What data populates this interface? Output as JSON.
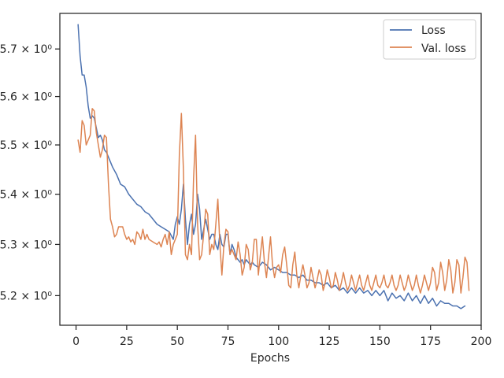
{
  "chart_data": {
    "type": "line",
    "title": "",
    "xlabel": "Epochs",
    "ylabel": "",
    "xlim": [
      -8,
      200
    ],
    "ylim": [
      5.143,
      5.776
    ],
    "yscale": "log",
    "grid": false,
    "legend_position": "top-right",
    "x_ticks": [
      0,
      25,
      50,
      75,
      100,
      125,
      150,
      175,
      200
    ],
    "x_tick_labels": [
      "0",
      "25",
      "50",
      "75",
      "100",
      "125",
      "150",
      "175",
      "200"
    ],
    "y_ticks": [
      5.2,
      5.3,
      5.4,
      5.5,
      5.6,
      5.7
    ],
    "y_tick_labels": [
      "5.2 × 10⁰",
      "5.3 × 10⁰",
      "5.4 × 10⁰",
      "5.5 × 10⁰",
      "5.6 × 10⁰",
      "5.7 × 10⁰"
    ],
    "series": [
      {
        "name": "Loss",
        "color": "#4c72b0",
        "points": [
          [
            1,
            5.752
          ],
          [
            2,
            5.685
          ],
          [
            3,
            5.645
          ],
          [
            4,
            5.645
          ],
          [
            5,
            5.62
          ],
          [
            6,
            5.58
          ],
          [
            7,
            5.555
          ],
          [
            8,
            5.56
          ],
          [
            9,
            5.555
          ],
          [
            10,
            5.535
          ],
          [
            11,
            5.515
          ],
          [
            12,
            5.52
          ],
          [
            13,
            5.51
          ],
          [
            14,
            5.49
          ],
          [
            15,
            5.485
          ],
          [
            16,
            5.475
          ],
          [
            18,
            5.455
          ],
          [
            20,
            5.44
          ],
          [
            22,
            5.42
          ],
          [
            24,
            5.415
          ],
          [
            26,
            5.4
          ],
          [
            28,
            5.39
          ],
          [
            30,
            5.38
          ],
          [
            32,
            5.375
          ],
          [
            34,
            5.365
          ],
          [
            36,
            5.36
          ],
          [
            38,
            5.35
          ],
          [
            40,
            5.34
          ],
          [
            42,
            5.335
          ],
          [
            44,
            5.33
          ],
          [
            46,
            5.325
          ],
          [
            48,
            5.31
          ],
          [
            49,
            5.34
          ],
          [
            50,
            5.355
          ],
          [
            51,
            5.34
          ],
          [
            52,
            5.37
          ],
          [
            53,
            5.42
          ],
          [
            54,
            5.35
          ],
          [
            55,
            5.3
          ],
          [
            56,
            5.34
          ],
          [
            57,
            5.36
          ],
          [
            58,
            5.32
          ],
          [
            59,
            5.34
          ],
          [
            60,
            5.4
          ],
          [
            61,
            5.37
          ],
          [
            62,
            5.31
          ],
          [
            63,
            5.33
          ],
          [
            64,
            5.35
          ],
          [
            65,
            5.33
          ],
          [
            66,
            5.31
          ],
          [
            67,
            5.32
          ],
          [
            68,
            5.32
          ],
          [
            69,
            5.3
          ],
          [
            70,
            5.29
          ],
          [
            71,
            5.32
          ],
          [
            72,
            5.3
          ],
          [
            73,
            5.295
          ],
          [
            74,
            5.32
          ],
          [
            75,
            5.32
          ],
          [
            76,
            5.28
          ],
          [
            77,
            5.3
          ],
          [
            78,
            5.29
          ],
          [
            79,
            5.275
          ],
          [
            80,
            5.27
          ],
          [
            81,
            5.265
          ],
          [
            82,
            5.27
          ],
          [
            83,
            5.26
          ],
          [
            84,
            5.27
          ],
          [
            85,
            5.265
          ],
          [
            86,
            5.26
          ],
          [
            87,
            5.265
          ],
          [
            88,
            5.26
          ],
          [
            90,
            5.255
          ],
          [
            92,
            5.265
          ],
          [
            94,
            5.26
          ],
          [
            96,
            5.25
          ],
          [
            98,
            5.255
          ],
          [
            100,
            5.25
          ],
          [
            102,
            5.245
          ],
          [
            104,
            5.245
          ],
          [
            106,
            5.24
          ],
          [
            108,
            5.24
          ],
          [
            110,
            5.235
          ],
          [
            112,
            5.24
          ],
          [
            114,
            5.23
          ],
          [
            116,
            5.23
          ],
          [
            118,
            5.225
          ],
          [
            120,
            5.225
          ],
          [
            122,
            5.22
          ],
          [
            124,
            5.225
          ],
          [
            126,
            5.215
          ],
          [
            128,
            5.22
          ],
          [
            130,
            5.21
          ],
          [
            132,
            5.215
          ],
          [
            134,
            5.205
          ],
          [
            136,
            5.215
          ],
          [
            138,
            5.205
          ],
          [
            140,
            5.215
          ],
          [
            142,
            5.205
          ],
          [
            144,
            5.21
          ],
          [
            146,
            5.2
          ],
          [
            148,
            5.21
          ],
          [
            150,
            5.2
          ],
          [
            152,
            5.21
          ],
          [
            154,
            5.19
          ],
          [
            156,
            5.205
          ],
          [
            158,
            5.195
          ],
          [
            160,
            5.2
          ],
          [
            162,
            5.19
          ],
          [
            164,
            5.205
          ],
          [
            166,
            5.19
          ],
          [
            168,
            5.2
          ],
          [
            170,
            5.185
          ],
          [
            172,
            5.2
          ],
          [
            174,
            5.185
          ],
          [
            176,
            5.195
          ],
          [
            178,
            5.18
          ],
          [
            180,
            5.19
          ],
          [
            182,
            5.185
          ],
          [
            184,
            5.185
          ],
          [
            186,
            5.18
          ],
          [
            188,
            5.18
          ],
          [
            190,
            5.175
          ],
          [
            192,
            5.18
          ]
        ]
      },
      {
        "name": "Val. loss",
        "color": "#dd8452",
        "points": [
          [
            1,
            5.51
          ],
          [
            2,
            5.485
          ],
          [
            3,
            5.55
          ],
          [
            4,
            5.54
          ],
          [
            5,
            5.5
          ],
          [
            6,
            5.51
          ],
          [
            7,
            5.52
          ],
          [
            8,
            5.575
          ],
          [
            9,
            5.57
          ],
          [
            10,
            5.525
          ],
          [
            11,
            5.5
          ],
          [
            12,
            5.475
          ],
          [
            13,
            5.49
          ],
          [
            14,
            5.52
          ],
          [
            15,
            5.515
          ],
          [
            16,
            5.42
          ],
          [
            17,
            5.35
          ],
          [
            18,
            5.335
          ],
          [
            19,
            5.315
          ],
          [
            20,
            5.32
          ],
          [
            21,
            5.335
          ],
          [
            22,
            5.335
          ],
          [
            23,
            5.335
          ],
          [
            24,
            5.32
          ],
          [
            25,
            5.31
          ],
          [
            26,
            5.315
          ],
          [
            27,
            5.305
          ],
          [
            28,
            5.31
          ],
          [
            29,
            5.3
          ],
          [
            30,
            5.325
          ],
          [
            31,
            5.32
          ],
          [
            32,
            5.31
          ],
          [
            33,
            5.33
          ],
          [
            34,
            5.31
          ],
          [
            35,
            5.32
          ],
          [
            36,
            5.31
          ],
          [
            38,
            5.305
          ],
          [
            40,
            5.3
          ],
          [
            41,
            5.305
          ],
          [
            42,
            5.295
          ],
          [
            43,
            5.31
          ],
          [
            44,
            5.32
          ],
          [
            45,
            5.3
          ],
          [
            46,
            5.325
          ],
          [
            47,
            5.28
          ],
          [
            48,
            5.3
          ],
          [
            49,
            5.31
          ],
          [
            50,
            5.32
          ],
          [
            51,
            5.48
          ],
          [
            52,
            5.565
          ],
          [
            53,
            5.45
          ],
          [
            54,
            5.28
          ],
          [
            55,
            5.27
          ],
          [
            56,
            5.3
          ],
          [
            57,
            5.28
          ],
          [
            58,
            5.43
          ],
          [
            59,
            5.52
          ],
          [
            60,
            5.34
          ],
          [
            61,
            5.27
          ],
          [
            62,
            5.28
          ],
          [
            63,
            5.32
          ],
          [
            64,
            5.37
          ],
          [
            65,
            5.36
          ],
          [
            66,
            5.28
          ],
          [
            67,
            5.3
          ],
          [
            68,
            5.29
          ],
          [
            69,
            5.34
          ],
          [
            70,
            5.39
          ],
          [
            71,
            5.3
          ],
          [
            72,
            5.24
          ],
          [
            73,
            5.3
          ],
          [
            74,
            5.33
          ],
          [
            75,
            5.325
          ],
          [
            76,
            5.28
          ],
          [
            77,
            5.29
          ],
          [
            78,
            5.28
          ],
          [
            79,
            5.27
          ],
          [
            80,
            5.305
          ],
          [
            81,
            5.28
          ],
          [
            82,
            5.24
          ],
          [
            83,
            5.255
          ],
          [
            84,
            5.3
          ],
          [
            85,
            5.29
          ],
          [
            86,
            5.25
          ],
          [
            87,
            5.265
          ],
          [
            88,
            5.31
          ],
          [
            89,
            5.31
          ],
          [
            90,
            5.24
          ],
          [
            91,
            5.28
          ],
          [
            92,
            5.315
          ],
          [
            93,
            5.265
          ],
          [
            94,
            5.235
          ],
          [
            95,
            5.275
          ],
          [
            96,
            5.315
          ],
          [
            97,
            5.26
          ],
          [
            98,
            5.235
          ],
          [
            99,
            5.255
          ],
          [
            100,
            5.26
          ],
          [
            101,
            5.245
          ],
          [
            102,
            5.28
          ],
          [
            103,
            5.295
          ],
          [
            104,
            5.26
          ],
          [
            105,
            5.22
          ],
          [
            106,
            5.215
          ],
          [
            107,
            5.26
          ],
          [
            108,
            5.285
          ],
          [
            109,
            5.24
          ],
          [
            110,
            5.215
          ],
          [
            111,
            5.24
          ],
          [
            112,
            5.26
          ],
          [
            113,
            5.24
          ],
          [
            114,
            5.215
          ],
          [
            115,
            5.225
          ],
          [
            116,
            5.255
          ],
          [
            117,
            5.235
          ],
          [
            118,
            5.215
          ],
          [
            119,
            5.23
          ],
          [
            120,
            5.25
          ],
          [
            121,
            5.24
          ],
          [
            122,
            5.21
          ],
          [
            123,
            5.225
          ],
          [
            124,
            5.25
          ],
          [
            125,
            5.235
          ],
          [
            126,
            5.215
          ],
          [
            127,
            5.22
          ],
          [
            128,
            5.245
          ],
          [
            129,
            5.23
          ],
          [
            130,
            5.21
          ],
          [
            131,
            5.225
          ],
          [
            132,
            5.245
          ],
          [
            133,
            5.225
          ],
          [
            134,
            5.21
          ],
          [
            135,
            5.22
          ],
          [
            136,
            5.24
          ],
          [
            137,
            5.225
          ],
          [
            138,
            5.21
          ],
          [
            139,
            5.225
          ],
          [
            140,
            5.24
          ],
          [
            141,
            5.22
          ],
          [
            142,
            5.21
          ],
          [
            143,
            5.225
          ],
          [
            144,
            5.24
          ],
          [
            145,
            5.22
          ],
          [
            146,
            5.21
          ],
          [
            147,
            5.225
          ],
          [
            148,
            5.24
          ],
          [
            149,
            5.22
          ],
          [
            150,
            5.215
          ],
          [
            151,
            5.225
          ],
          [
            152,
            5.24
          ],
          [
            153,
            5.22
          ],
          [
            154,
            5.215
          ],
          [
            155,
            5.225
          ],
          [
            156,
            5.24
          ],
          [
            157,
            5.22
          ],
          [
            158,
            5.21
          ],
          [
            159,
            5.22
          ],
          [
            160,
            5.24
          ],
          [
            161,
            5.225
          ],
          [
            162,
            5.21
          ],
          [
            163,
            5.22
          ],
          [
            164,
            5.24
          ],
          [
            165,
            5.225
          ],
          [
            166,
            5.21
          ],
          [
            167,
            5.22
          ],
          [
            168,
            5.24
          ],
          [
            169,
            5.22
          ],
          [
            170,
            5.205
          ],
          [
            171,
            5.22
          ],
          [
            172,
            5.24
          ],
          [
            173,
            5.225
          ],
          [
            174,
            5.21
          ],
          [
            175,
            5.225
          ],
          [
            176,
            5.255
          ],
          [
            177,
            5.245
          ],
          [
            178,
            5.21
          ],
          [
            179,
            5.225
          ],
          [
            180,
            5.265
          ],
          [
            181,
            5.245
          ],
          [
            182,
            5.21
          ],
          [
            183,
            5.23
          ],
          [
            184,
            5.27
          ],
          [
            185,
            5.25
          ],
          [
            186,
            5.205
          ],
          [
            187,
            5.225
          ],
          [
            188,
            5.27
          ],
          [
            189,
            5.26
          ],
          [
            190,
            5.205
          ],
          [
            191,
            5.235
          ],
          [
            192,
            5.275
          ],
          [
            193,
            5.265
          ],
          [
            194,
            5.21
          ]
        ]
      }
    ]
  }
}
